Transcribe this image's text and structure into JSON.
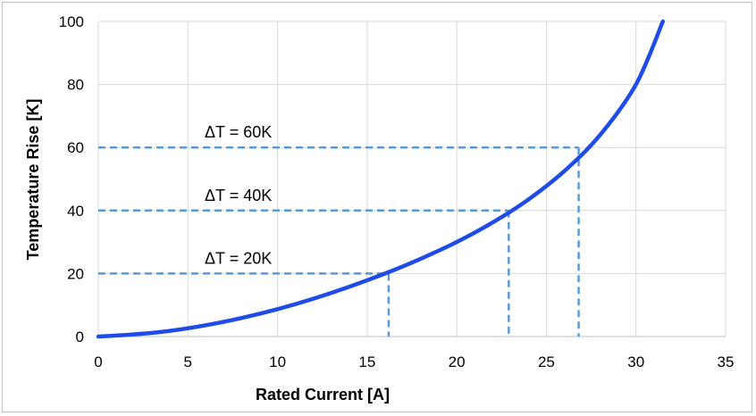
{
  "chart_data": {
    "type": "line",
    "title": "",
    "xlabel": "Rated Current [A]",
    "ylabel": "Temperature Rise  [K]",
    "xlim": [
      0,
      35
    ],
    "ylim": [
      0,
      100
    ],
    "xticks": [
      "0",
      "5",
      "10",
      "15",
      "20",
      "25",
      "30",
      "35"
    ],
    "yticks": [
      "0",
      "20",
      "40",
      "60",
      "80",
      "100"
    ],
    "grid": true,
    "legend": "none",
    "series": [
      {
        "color": "#1f4be8",
        "x": [
          0,
          2,
          4,
          6,
          8,
          10,
          12,
          14,
          16,
          18,
          20,
          22,
          24,
          26,
          28,
          30,
          31.5
        ],
        "y": [
          0,
          0.7,
          1.8,
          3.6,
          5.9,
          8.7,
          12.0,
          15.8,
          20.0,
          24.7,
          30.0,
          36.2,
          43.5,
          52.5,
          64.0,
          80.0,
          100
        ]
      }
    ],
    "reference_lines": {
      "color": "#5b9bd5",
      "items": [
        {
          "label": "ΔT = 20K",
          "x": 16.2,
          "y": 20
        },
        {
          "label": "ΔT = 40K",
          "x": 22.9,
          "y": 40
        },
        {
          "label": "ΔT = 60K",
          "x": 26.8,
          "y": 60
        }
      ]
    }
  }
}
